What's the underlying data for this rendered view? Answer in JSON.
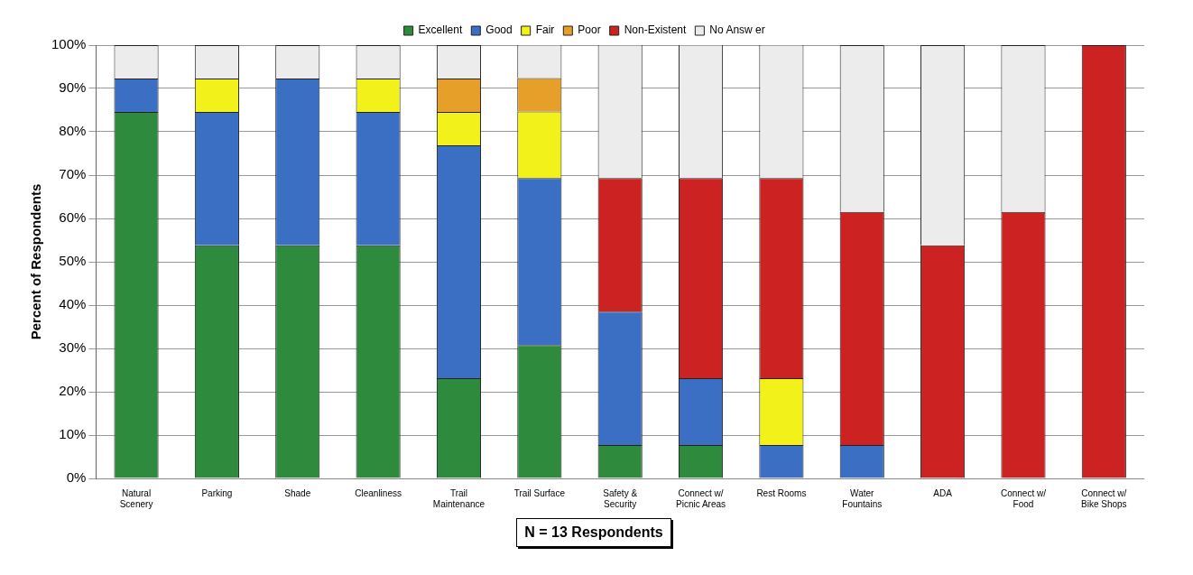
{
  "chart_data": {
    "type": "bar",
    "stacked": true,
    "ylabel": "Percent of Respondents",
    "categories": [
      "Natural Scenery",
      "Parking",
      "Shade",
      "Cleanliness",
      "Trail Maintenance",
      "Trail Surface",
      "Safety & Security",
      "Connect w/ Picnic Areas",
      "Rest Rooms",
      "Water Fountains",
      "ADA",
      "Connect w/ Food",
      "Connect w/ Bike Shops"
    ],
    "series": [
      {
        "name": "Excellent",
        "color": "#2e8b3e",
        "values": [
          84.6,
          53.8,
          53.8,
          53.8,
          23.1,
          30.8,
          7.7,
          7.7,
          0,
          0,
          0,
          0,
          0
        ]
      },
      {
        "name": "Good",
        "color": "#3a6fc4",
        "values": [
          7.7,
          30.8,
          38.5,
          30.8,
          53.8,
          38.5,
          30.8,
          15.4,
          7.7,
          7.7,
          0,
          0,
          0
        ]
      },
      {
        "name": "Fair",
        "color": "#f2f21a",
        "values": [
          0,
          7.7,
          0,
          7.7,
          7.7,
          15.4,
          0,
          0,
          15.4,
          0,
          0,
          0,
          0
        ]
      },
      {
        "name": "Poor",
        "color": "#e6a02a",
        "values": [
          0,
          0,
          0,
          0,
          7.7,
          7.7,
          0,
          0,
          0,
          0,
          0,
          0,
          0
        ]
      },
      {
        "name": "Non-Existent",
        "color": "#cc2222",
        "values": [
          0,
          0,
          0,
          0,
          0,
          0,
          30.8,
          46.2,
          46.2,
          53.8,
          53.8,
          61.5,
          100
        ]
      },
      {
        "name": "No Answ er",
        "color": "#ececec",
        "values": [
          7.7,
          7.7,
          7.7,
          7.7,
          7.7,
          7.7,
          30.8,
          30.8,
          30.8,
          38.5,
          46.2,
          38.5,
          0
        ]
      }
    ],
    "ylim": [
      0,
      100
    ],
    "yticks": [
      {
        "value": 0,
        "label": "0%"
      },
      {
        "value": 10,
        "label": "10%"
      },
      {
        "value": 20,
        "label": "20%"
      },
      {
        "value": 30,
        "label": "30%"
      },
      {
        "value": 40,
        "label": "40%"
      },
      {
        "value": 50,
        "label": "50%"
      },
      {
        "value": 60,
        "label": "60%"
      },
      {
        "value": 70,
        "label": "70%"
      },
      {
        "value": 80,
        "label": "80%"
      },
      {
        "value": 90,
        "label": "90%"
      },
      {
        "value": 100,
        "label": "100%"
      }
    ],
    "grid": "y",
    "legend": "top",
    "annotations": [
      "N = 13 Respondents"
    ]
  }
}
